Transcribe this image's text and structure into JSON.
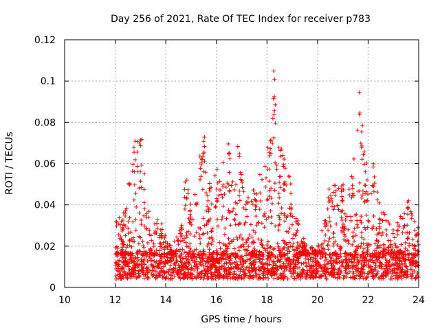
{
  "chart_data": {
    "type": "scatter",
    "title": "Day 256 of 2021, Rate Of TEC Index for receiver p783",
    "xlabel": "GPS time / hours",
    "ylabel": "ROTI / TECUs",
    "xlim": [
      10,
      24
    ],
    "ylim": [
      0,
      0.12
    ],
    "xticks": [
      "10",
      "12",
      "14",
      "16",
      "18",
      "20",
      "22",
      "24"
    ],
    "yticks": [
      "0",
      "0.02",
      "0.04",
      "0.06",
      "0.08",
      "0.1",
      "0.12"
    ],
    "grid": true,
    "marker": "plus",
    "color": "#ff0000",
    "series": [
      {
        "x_start": 12.0,
        "x_end": 24.0,
        "baseline_range": [
          0.004,
          0.016
        ],
        "burst_envelope": [
          [
            12.0,
            0.038
          ],
          [
            12.3,
            0.034
          ],
          [
            12.8,
            0.072
          ],
          [
            13.0,
            0.075
          ],
          [
            13.3,
            0.038
          ],
          [
            13.8,
            0.032
          ],
          [
            14.2,
            0.02
          ],
          [
            14.6,
            0.03
          ],
          [
            14.8,
            0.055
          ],
          [
            15.0,
            0.04
          ],
          [
            15.4,
            0.065
          ],
          [
            15.5,
            0.078
          ],
          [
            15.7,
            0.05
          ],
          [
            16.0,
            0.058
          ],
          [
            16.5,
            0.07
          ],
          [
            16.9,
            0.072
          ],
          [
            17.2,
            0.046
          ],
          [
            17.6,
            0.05
          ],
          [
            18.1,
            0.08
          ],
          [
            18.3,
            0.106
          ],
          [
            18.5,
            0.07
          ],
          [
            18.7,
            0.068
          ],
          [
            18.9,
            0.055
          ],
          [
            19.2,
            0.035
          ],
          [
            19.5,
            0.022
          ],
          [
            20.0,
            0.018
          ],
          [
            20.5,
            0.048
          ],
          [
            21.0,
            0.055
          ],
          [
            21.4,
            0.06
          ],
          [
            21.7,
            0.095
          ],
          [
            21.9,
            0.064
          ],
          [
            22.2,
            0.062
          ],
          [
            22.5,
            0.04
          ],
          [
            23.0,
            0.028
          ],
          [
            23.6,
            0.044
          ],
          [
            24.0,
            0.03
          ]
        ]
      }
    ]
  }
}
